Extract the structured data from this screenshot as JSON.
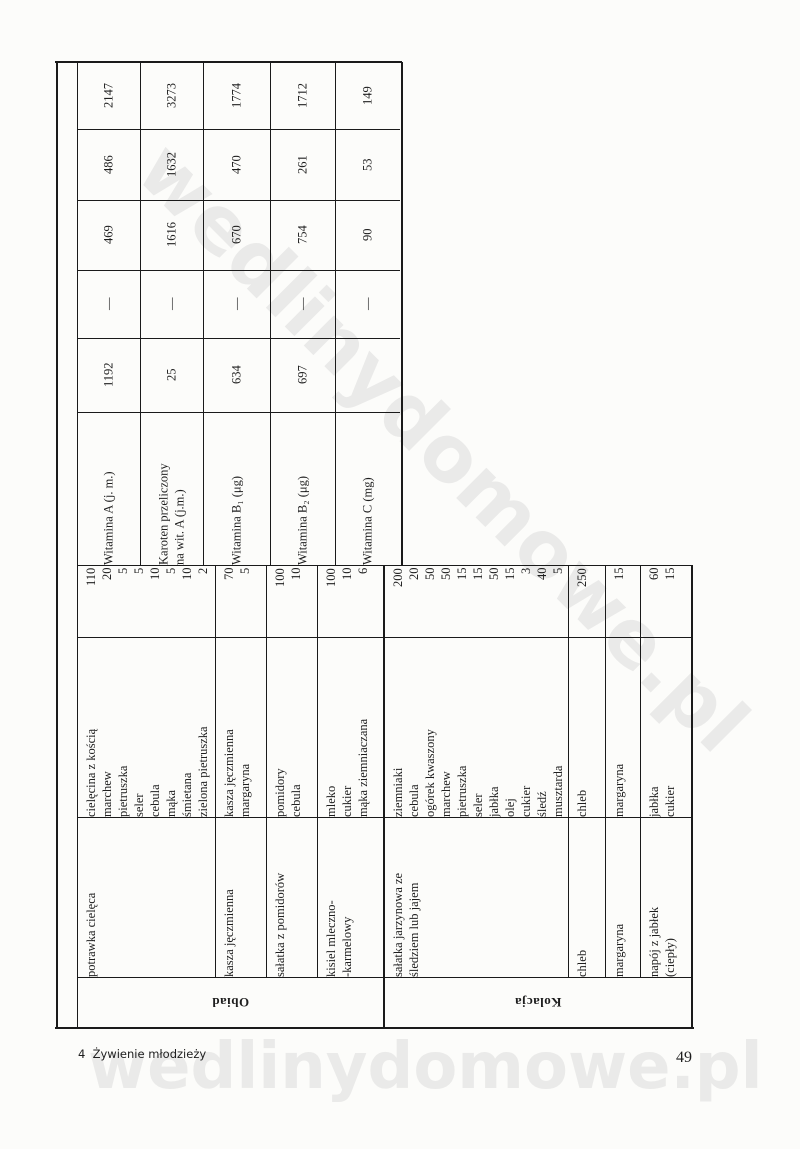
{
  "watermark": "wedlinydomowe.pl",
  "vitamins": [
    {
      "label": "Witamina A (j. m.)",
      "values": [
        "1192",
        "—",
        "469",
        "486",
        "2147"
      ]
    },
    {
      "label": "Karoten przeliczony\nna wit. A (j.m.)",
      "values": [
        "25",
        "—",
        "1616",
        "1632",
        "3273"
      ]
    },
    {
      "label": "Witamina B₁ (μg)",
      "values": [
        "634",
        "—",
        "670",
        "470",
        "1774"
      ]
    },
    {
      "label": "Witamina B₂ (μg)",
      "values": [
        "697",
        "—",
        "754",
        "261",
        "1712"
      ]
    },
    {
      "label": "Witamina C (mg)",
      "values": [
        "",
        "—",
        "90",
        "53",
        "149"
      ]
    }
  ],
  "meals": [
    {
      "name": "Obiad",
      "dishes": [
        {
          "name": "potrawka cielęca",
          "ingredients": "cielęcina z kością\nmarchew\npietruszka\nseler\ncebula\nmąka\nśmietana\nzielona pietruszka",
          "amounts": "110\n20\n5\n5\n10\n5\n10\n2"
        },
        {
          "name": "kasza jęczmienna",
          "ingredients": "kasza jęczmienna\nmargaryna",
          "amounts": "70\n5"
        },
        {
          "name": "sałatka z pomidorów",
          "ingredients": "pomidory\ncebula",
          "amounts": "100\n10"
        },
        {
          "name": "kisiel mleczno-\n-karmelowy",
          "ingredients": "mleko\ncukier\nmąka ziemniaczana",
          "amounts": "100\n10\n6"
        }
      ]
    },
    {
      "name": "Kolacja",
      "dishes": [
        {
          "name": "sałatka jarzynowa ze\nśledziem lub jajem",
          "ingredients": "ziemniaki\ncebula\nogórek kwaszony\nmarchew\npietruszka\nseler\njabłka\nolej\ncukier\nśledź\nmusztarda",
          "amounts": "200\n20\n50\n50\n15\n15\n50\n15\n3\n40\n5"
        },
        {
          "name": "chleb",
          "ingredients": "chleb",
          "amounts": "250"
        },
        {
          "name": "margaryna",
          "ingredients": "margaryna",
          "amounts": "15"
        },
        {
          "name": "napój z jabłek\n(ciepły)",
          "ingredients": "jabłka\ncukier",
          "amounts": "60\n15"
        }
      ]
    }
  ],
  "footer": {
    "left": "4  Żywienie młodzieży",
    "page_number": "49"
  }
}
